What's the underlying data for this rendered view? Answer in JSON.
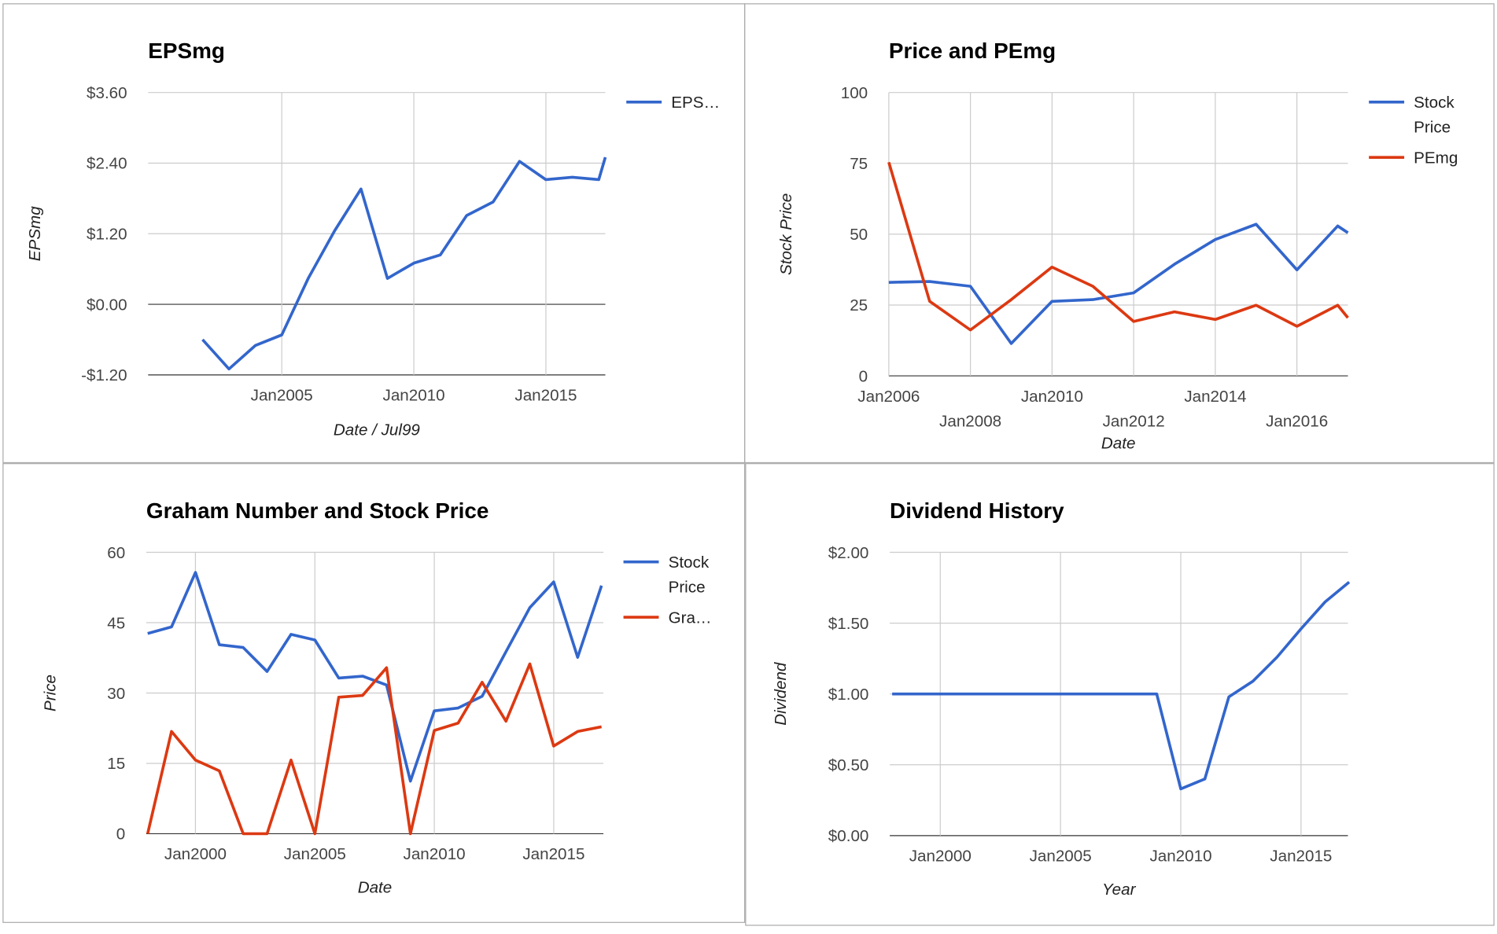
{
  "chart_data": [
    {
      "type": "line",
      "title": "EPSmg",
      "x_label": "Date / Jul99",
      "y_label": "EPSmg",
      "x": [
        2002,
        2003,
        2004,
        2005,
        2006,
        2007,
        2008,
        2009,
        2010,
        2011,
        2012,
        2013,
        2014,
        2015,
        2016,
        2017,
        2017.25
      ],
      "series": [
        {
          "name": "EPS…",
          "color": "#3366cc",
          "values": [
            -0.6,
            -1.1,
            -0.7,
            -0.52,
            0.44,
            1.25,
            1.96,
            0.44,
            0.7,
            0.84,
            1.51,
            1.74,
            2.43,
            2.12,
            2.16,
            2.12,
            2.5
          ]
        }
      ],
      "xlim": [
        1999.94,
        2017.25
      ],
      "ylim": [
        -1.2,
        3.6
      ],
      "xticks": [
        {
          "value": 2005,
          "label": "Jan2005"
        },
        {
          "value": 2010,
          "label": "Jan2010"
        },
        {
          "value": 2015,
          "label": "Jan2015"
        }
      ],
      "yticks": [
        {
          "value": -1.2,
          "label": "-$1.20"
        },
        {
          "value": 0,
          "label": "$0.00"
        },
        {
          "value": 1.2,
          "label": "$1.20"
        },
        {
          "value": 2.4,
          "label": "$2.40"
        },
        {
          "value": 3.6,
          "label": "$3.60"
        }
      ],
      "grid": true,
      "legend": "right"
    },
    {
      "type": "line",
      "title": "Price and PEmg",
      "x_label": "Date",
      "y_label": "Stock Price",
      "x": [
        2006,
        2007,
        2008,
        2009,
        2010,
        2011,
        2012,
        2013,
        2014,
        2015,
        2016,
        2017,
        2017.25
      ],
      "series": [
        {
          "name": "Stock Price",
          "color": "#3366cc",
          "values": [
            33,
            33.3,
            31.6,
            11.4,
            26.3,
            26.9,
            29.3,
            39.4,
            48.1,
            53.5,
            37.4,
            52.9,
            50.5
          ]
        },
        {
          "name": "PEmg",
          "color": "#dc3912",
          "values": [
            75.4,
            26.3,
            16.2,
            26.9,
            38.4,
            31.6,
            19.2,
            22.6,
            19.9,
            24.9,
            17.5,
            24.9,
            20.5
          ]
        }
      ],
      "xlim": [
        2006,
        2017.25
      ],
      "ylim": [
        0,
        100
      ],
      "xticks": [
        {
          "value": 2006,
          "label": "Jan2006"
        },
        {
          "value": 2008,
          "label": "Jan2008"
        },
        {
          "value": 2010,
          "label": "Jan2010"
        },
        {
          "value": 2012,
          "label": "Jan2012"
        },
        {
          "value": 2014,
          "label": "Jan2014"
        },
        {
          "value": 2016,
          "label": "Jan2016"
        }
      ],
      "yticks": [
        0,
        25,
        50,
        75,
        100
      ],
      "grid": true,
      "legend": "right"
    },
    {
      "type": "line",
      "title": "Graham Number and Stock Price",
      "x_label": "Date",
      "y_label": "Price",
      "x": [
        1998,
        1999,
        2000,
        2001,
        2002,
        2003,
        2004,
        2005,
        2006,
        2007,
        2008,
        2009,
        2010,
        2011,
        2012,
        2013,
        2014,
        2015,
        2016,
        2017
      ],
      "series": [
        {
          "name": "Stock Price",
          "color": "#3366cc",
          "values": [
            42.7,
            44.1,
            55.7,
            40.3,
            39.7,
            34.6,
            42.5,
            41.3,
            33.2,
            33.6,
            31.7,
            11.2,
            26.2,
            26.8,
            29.3,
            38.8,
            48.2,
            53.7,
            37.6,
            52.9
          ]
        },
        {
          "name": "Gra…",
          "color": "#dc3912",
          "values": [
            0,
            21.8,
            15.7,
            13.4,
            0,
            0,
            15.7,
            0,
            29.1,
            29.5,
            35.4,
            0,
            22,
            23.6,
            32.3,
            24,
            36.2,
            18.7,
            21.8,
            22.8
          ]
        }
      ],
      "xlim": [
        1997.94,
        2017.08
      ],
      "ylim": [
        0,
        60
      ],
      "xticks": [
        {
          "value": 2000,
          "label": "Jan2000"
        },
        {
          "value": 2005,
          "label": "Jan2005"
        },
        {
          "value": 2010,
          "label": "Jan2010"
        },
        {
          "value": 2015,
          "label": "Jan2015"
        }
      ],
      "yticks": [
        0,
        15,
        30,
        45,
        60
      ],
      "grid": true,
      "legend": "right"
    },
    {
      "type": "line",
      "title": "Dividend History",
      "x_label": "Year",
      "y_label": "Dividend",
      "x": [
        1998,
        1999,
        2000,
        2001,
        2002,
        2003,
        2004,
        2005,
        2006,
        2007,
        2008,
        2009,
        2010,
        2011,
        2012,
        2013,
        2014,
        2015,
        2016,
        2017
      ],
      "series": [
        {
          "name": "Dividend",
          "color": "#3366cc",
          "values": [
            1,
            1,
            1,
            1,
            1,
            1,
            1,
            1,
            1,
            1,
            1,
            1,
            0.33,
            0.4,
            0.98,
            1.09,
            1.26,
            1.46,
            1.65,
            1.79
          ]
        }
      ],
      "xlim": [
        1997.9,
        2016.95
      ],
      "ylim": [
        0,
        2
      ],
      "xticks": [
        {
          "value": 2000,
          "label": "Jan2000"
        },
        {
          "value": 2005,
          "label": "Jan2005"
        },
        {
          "value": 2010,
          "label": "Jan2010"
        },
        {
          "value": 2015,
          "label": "Jan2015"
        }
      ],
      "yticks": [
        {
          "value": 0,
          "label": "$0.00"
        },
        {
          "value": 0.5,
          "label": "$0.50"
        },
        {
          "value": 1,
          "label": "$1.00"
        },
        {
          "value": 1.5,
          "label": "$1.50"
        },
        {
          "value": 2,
          "label": "$2.00"
        }
      ],
      "grid": true,
      "legend": "none"
    }
  ]
}
